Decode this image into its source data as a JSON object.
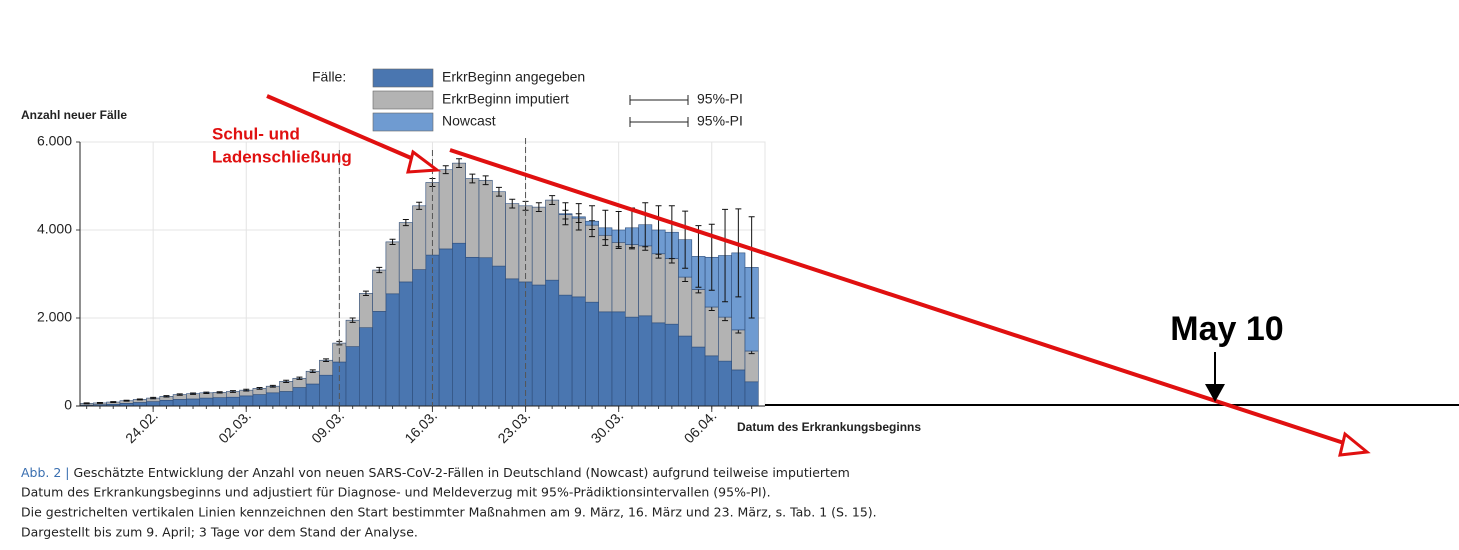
{
  "chart_data": {
    "type": "stacked-bar",
    "y_label": "Anzahl neuer Fälle",
    "x_label": "Datum des Erkrankungsbeginns",
    "legend_title": "Fälle:",
    "categories": [
      null,
      null,
      null,
      null,
      null,
      "24.02.",
      null,
      null,
      null,
      null,
      null,
      null,
      "02.03.",
      null,
      null,
      null,
      null,
      null,
      null,
      "09.03.",
      null,
      null,
      null,
      null,
      null,
      null,
      "16.03.",
      null,
      null,
      null,
      null,
      null,
      null,
      "23.03.",
      null,
      null,
      null,
      null,
      null,
      null,
      "30.03.",
      null,
      null,
      null,
      null,
      null,
      null,
      "06.04.",
      null,
      null,
      null
    ],
    "series": [
      {
        "name": "ErkrBeginn angegeben",
        "color": "#4a76b0",
        "values": [
          20,
          30,
          40,
          60,
          80,
          100,
          130,
          150,
          160,
          180,
          190,
          200,
          230,
          260,
          300,
          330,
          420,
          500,
          700,
          1000,
          1350,
          1780,
          2150,
          2550,
          2820,
          3100,
          3430,
          3570,
          3700,
          3380,
          3370,
          3180,
          2890,
          2820,
          2750,
          2860,
          2520,
          2480,
          2360,
          2140,
          2140,
          2020,
          2050,
          1890,
          1860,
          1590,
          1340,
          1140,
          1020,
          820,
          550
        ]
      },
      {
        "name": "ErkrBeginn imputiert",
        "color": "#b3b3b3",
        "interval_label": "95%-PI",
        "values": [
          40,
          40,
          50,
          60,
          70,
          80,
          90,
          110,
          120,
          120,
          120,
          130,
          130,
          140,
          150,
          230,
          210,
          290,
          340,
          430,
          600,
          780,
          940,
          1180,
          1350,
          1450,
          1650,
          1800,
          1820,
          1790,
          1760,
          1690,
          1710,
          1730,
          1770,
          1820,
          1830,
          1790,
          1750,
          1740,
          1580,
          1650,
          1590,
          1570,
          1490,
          1340,
          1310,
          1110,
          1000,
          910,
          700
        ],
        "errors": [
          10,
          10,
          10,
          10,
          10,
          15,
          15,
          15,
          15,
          15,
          15,
          20,
          20,
          20,
          20,
          25,
          25,
          30,
          30,
          40,
          50,
          50,
          60,
          60,
          70,
          80,
          90,
          90,
          100,
          100,
          100,
          100,
          100,
          100,
          100,
          100,
          100,
          100,
          100,
          100,
          100,
          100,
          100,
          100,
          100,
          100,
          80,
          80,
          80,
          70,
          60
        ]
      },
      {
        "name": "Nowcast",
        "color": "#6f9bd1",
        "interval_label": "95%-PI",
        "values": [
          0,
          0,
          0,
          0,
          0,
          0,
          0,
          0,
          0,
          0,
          0,
          0,
          0,
          0,
          0,
          0,
          0,
          0,
          0,
          0,
          0,
          0,
          0,
          0,
          0,
          0,
          0,
          0,
          0,
          0,
          0,
          0,
          0,
          0,
          0,
          0,
          20,
          30,
          90,
          170,
          280,
          380,
          480,
          540,
          600,
          850,
          750,
          1130,
          1400,
          1750,
          1900
        ],
        "errors": [
          null,
          null,
          null,
          null,
          null,
          null,
          null,
          null,
          null,
          null,
          null,
          null,
          null,
          null,
          null,
          null,
          null,
          null,
          null,
          null,
          null,
          null,
          null,
          null,
          null,
          null,
          null,
          null,
          null,
          null,
          null,
          null,
          null,
          null,
          null,
          null,
          250,
          300,
          350,
          400,
          420,
          450,
          500,
          550,
          600,
          650,
          700,
          750,
          1050,
          1000,
          1150
        ]
      }
    ],
    "ylim": [
      0,
      6000
    ],
    "yticks": [
      0,
      {
        "value": 2000,
        "label": "2.000"
      },
      {
        "value": 4000,
        "label": "4.000"
      },
      {
        "value": 6000,
        "label": "6.000"
      }
    ],
    "grid": true,
    "dashed_at": [
      "09.03.",
      "16.03.",
      "23.03."
    ],
    "annotations": [
      "Schul- und",
      "Ladenschließung",
      "May 10"
    ],
    "caption_label": "Abb. 2 |",
    "caption": [
      "Geschätzte Entwicklung der Anzahl von neuen SARS-CoV-2-Fällen in Deutschland (Nowcast) aufgrund teilweise imputiertem",
      "Datum des Erkrankungsbeginns und adjustiert für Diagnose- und Meldeverzug mit 95%-Prädiktionsintervallen (95%-PI).",
      "Die gestrichelten vertikalen Linien kennzeichnen den Start bestimmter Maßnahmen am 9. März, 16. März und 23. März, s. Tab. 1 (S. 15).",
      "Dargestellt bis zum 9. April; 3 Tage vor dem Stand der Analyse."
    ]
  }
}
